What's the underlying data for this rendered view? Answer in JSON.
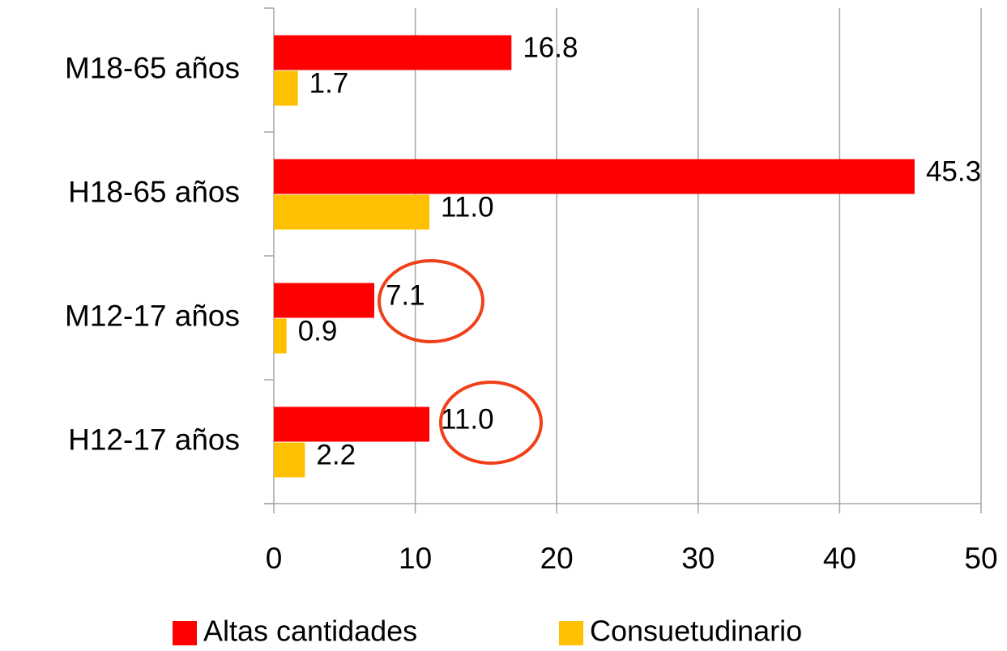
{
  "chart_data": {
    "type": "hbar",
    "categories": [
      "M18-65 años",
      "H18-65 años",
      "M12-17 años",
      "H12-17 años"
    ],
    "series": [
      {
        "name": "Altas cantidades",
        "color": "#ff0000",
        "values": [
          16.8,
          45.3,
          7.1,
          11.0
        ],
        "value_labels": [
          "16.8",
          "45.3",
          "7.1",
          "11.0"
        ]
      },
      {
        "name": "Consuetudinario",
        "color": "#ffc000",
        "values": [
          1.7,
          11.0,
          0.9,
          2.2
        ],
        "value_labels": [
          "1.7",
          "11.0",
          "0.9",
          "2.2"
        ]
      }
    ],
    "xlim": [
      0,
      50
    ],
    "xticks": [
      0,
      10,
      20,
      30,
      40,
      50
    ],
    "grid": true,
    "legend": "bottom"
  }
}
